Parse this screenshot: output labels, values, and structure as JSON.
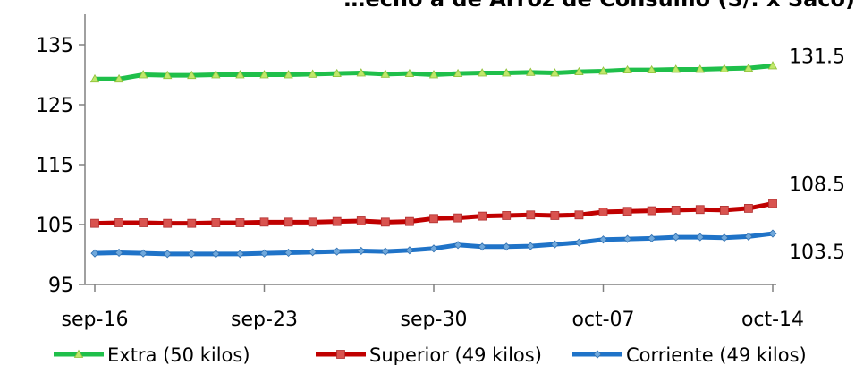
{
  "chart_data": {
    "type": "line",
    "title": "…echo a de Arroz de Consumo (S/. x Saco)",
    "xlabel": "",
    "ylabel": "",
    "ylim": [
      95,
      135
    ],
    "yticks": [
      95,
      105,
      115,
      125,
      135
    ],
    "x_tick_labels": [
      "sep-16",
      "sep-23",
      "sep-30",
      "oct-07",
      "oct-14"
    ],
    "x_tick_positions": [
      0,
      7,
      14,
      21,
      28
    ],
    "x": [
      "sep-16",
      "sep-17",
      "sep-18",
      "sep-19",
      "sep-20",
      "sep-21",
      "sep-22",
      "sep-23",
      "sep-24",
      "sep-25",
      "sep-26",
      "sep-27",
      "sep-28",
      "sep-29",
      "sep-30",
      "oct-01",
      "oct-02",
      "oct-03",
      "oct-04",
      "oct-05",
      "oct-06",
      "oct-07",
      "oct-08",
      "oct-09",
      "oct-10",
      "oct-11",
      "oct-12",
      "oct-13",
      "oct-14"
    ],
    "grid": false,
    "legend_position": "bottom",
    "series": [
      {
        "name": "Extra (50 kilos)",
        "color": "#1fbf4a",
        "marker": "triangle",
        "end_label": "131.5",
        "values": [
          129.3,
          129.3,
          130.0,
          129.9,
          129.9,
          130.0,
          130.0,
          130.0,
          130.0,
          130.1,
          130.2,
          130.3,
          130.1,
          130.2,
          130.0,
          130.2,
          130.3,
          130.3,
          130.4,
          130.3,
          130.5,
          130.6,
          130.8,
          130.8,
          130.9,
          130.9,
          131.0,
          131.1,
          131.5
        ]
      },
      {
        "name": "Superior (49 kilos)",
        "color": "#c00000",
        "marker": "square",
        "end_label": "108.5",
        "values": [
          105.2,
          105.3,
          105.3,
          105.2,
          105.2,
          105.3,
          105.3,
          105.4,
          105.4,
          105.4,
          105.5,
          105.6,
          105.4,
          105.5,
          106.0,
          106.1,
          106.4,
          106.5,
          106.6,
          106.5,
          106.6,
          107.1,
          107.2,
          107.3,
          107.4,
          107.5,
          107.4,
          107.7,
          108.5
        ]
      },
      {
        "name": "Corriente (49 kilos)",
        "color": "#1f73c8",
        "marker": "diamond",
        "end_label": "103.5",
        "values": [
          100.2,
          100.3,
          100.2,
          100.1,
          100.1,
          100.1,
          100.1,
          100.2,
          100.3,
          100.4,
          100.5,
          100.6,
          100.5,
          100.7,
          101.0,
          101.6,
          101.3,
          101.3,
          101.4,
          101.7,
          102.0,
          102.5,
          102.6,
          102.7,
          102.9,
          102.9,
          102.8,
          103.0,
          103.5
        ]
      }
    ]
  }
}
